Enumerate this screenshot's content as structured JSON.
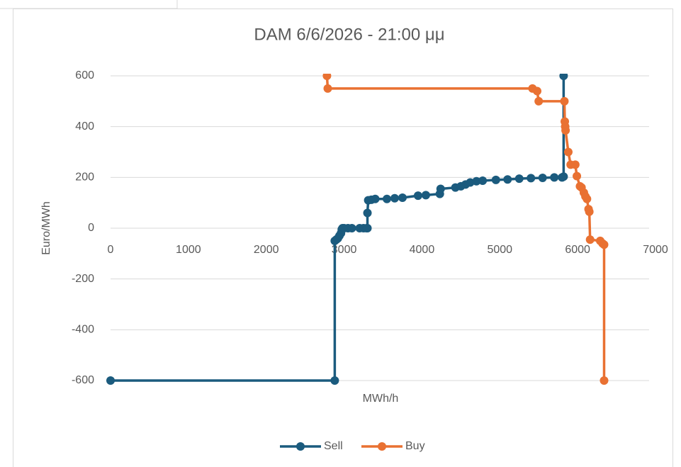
{
  "chart_data": {
    "type": "scatter",
    "title": "DAM 6/6/2026 - 21:00 μμ",
    "x_label": "MWh/h",
    "y_label": "Euro/MWh",
    "xlim": [
      0,
      7000
    ],
    "xticks": [
      0,
      1000,
      2000,
      3000,
      4000,
      5000,
      6000,
      7000
    ],
    "ylim": [
      -600,
      600
    ],
    "yticks": [
      -600,
      -400,
      -200,
      0,
      200,
      400,
      600
    ],
    "grid": true,
    "legend": "bottom",
    "series": [
      {
        "name": "Sell",
        "color": "#1b5b7e",
        "x": [
          0,
          2880,
          2880,
          2900,
          2920,
          2940,
          2960,
          2970,
          2980,
          3000,
          3050,
          3100,
          3200,
          3250,
          3290,
          3300,
          3300,
          3310,
          3350,
          3400,
          3550,
          3650,
          3750,
          3950,
          4050,
          4230,
          4240,
          4430,
          4500,
          4560,
          4620,
          4700,
          4780,
          4950,
          5100,
          5250,
          5400,
          5550,
          5700,
          5800,
          5820,
          5820
        ],
        "values": [
          -600,
          -600,
          -50,
          -45,
          -40,
          -30,
          -20,
          -5,
          0,
          0,
          0,
          0,
          0,
          0,
          0,
          0,
          60,
          110,
          112,
          115,
          115,
          118,
          120,
          128,
          130,
          135,
          155,
          160,
          165,
          172,
          180,
          185,
          187,
          190,
          192,
          195,
          197,
          198,
          200,
          200,
          203,
          600
        ]
      },
      {
        "name": "Buy",
        "color": "#e97132",
        "x": [
          2780,
          2790,
          5420,
          5480,
          5500,
          5830,
          5835,
          5840,
          5845,
          5880,
          5910,
          5970,
          5990,
          6030,
          6050,
          6080,
          6100,
          6120,
          6140,
          6150,
          6160,
          6290,
          6320,
          6340,
          6340
        ],
        "values": [
          600,
          550,
          550,
          540,
          500,
          500,
          420,
          400,
          385,
          300,
          250,
          250,
          205,
          165,
          160,
          140,
          125,
          115,
          75,
          65,
          -45,
          -50,
          -60,
          -65,
          -600
        ]
      }
    ]
  }
}
